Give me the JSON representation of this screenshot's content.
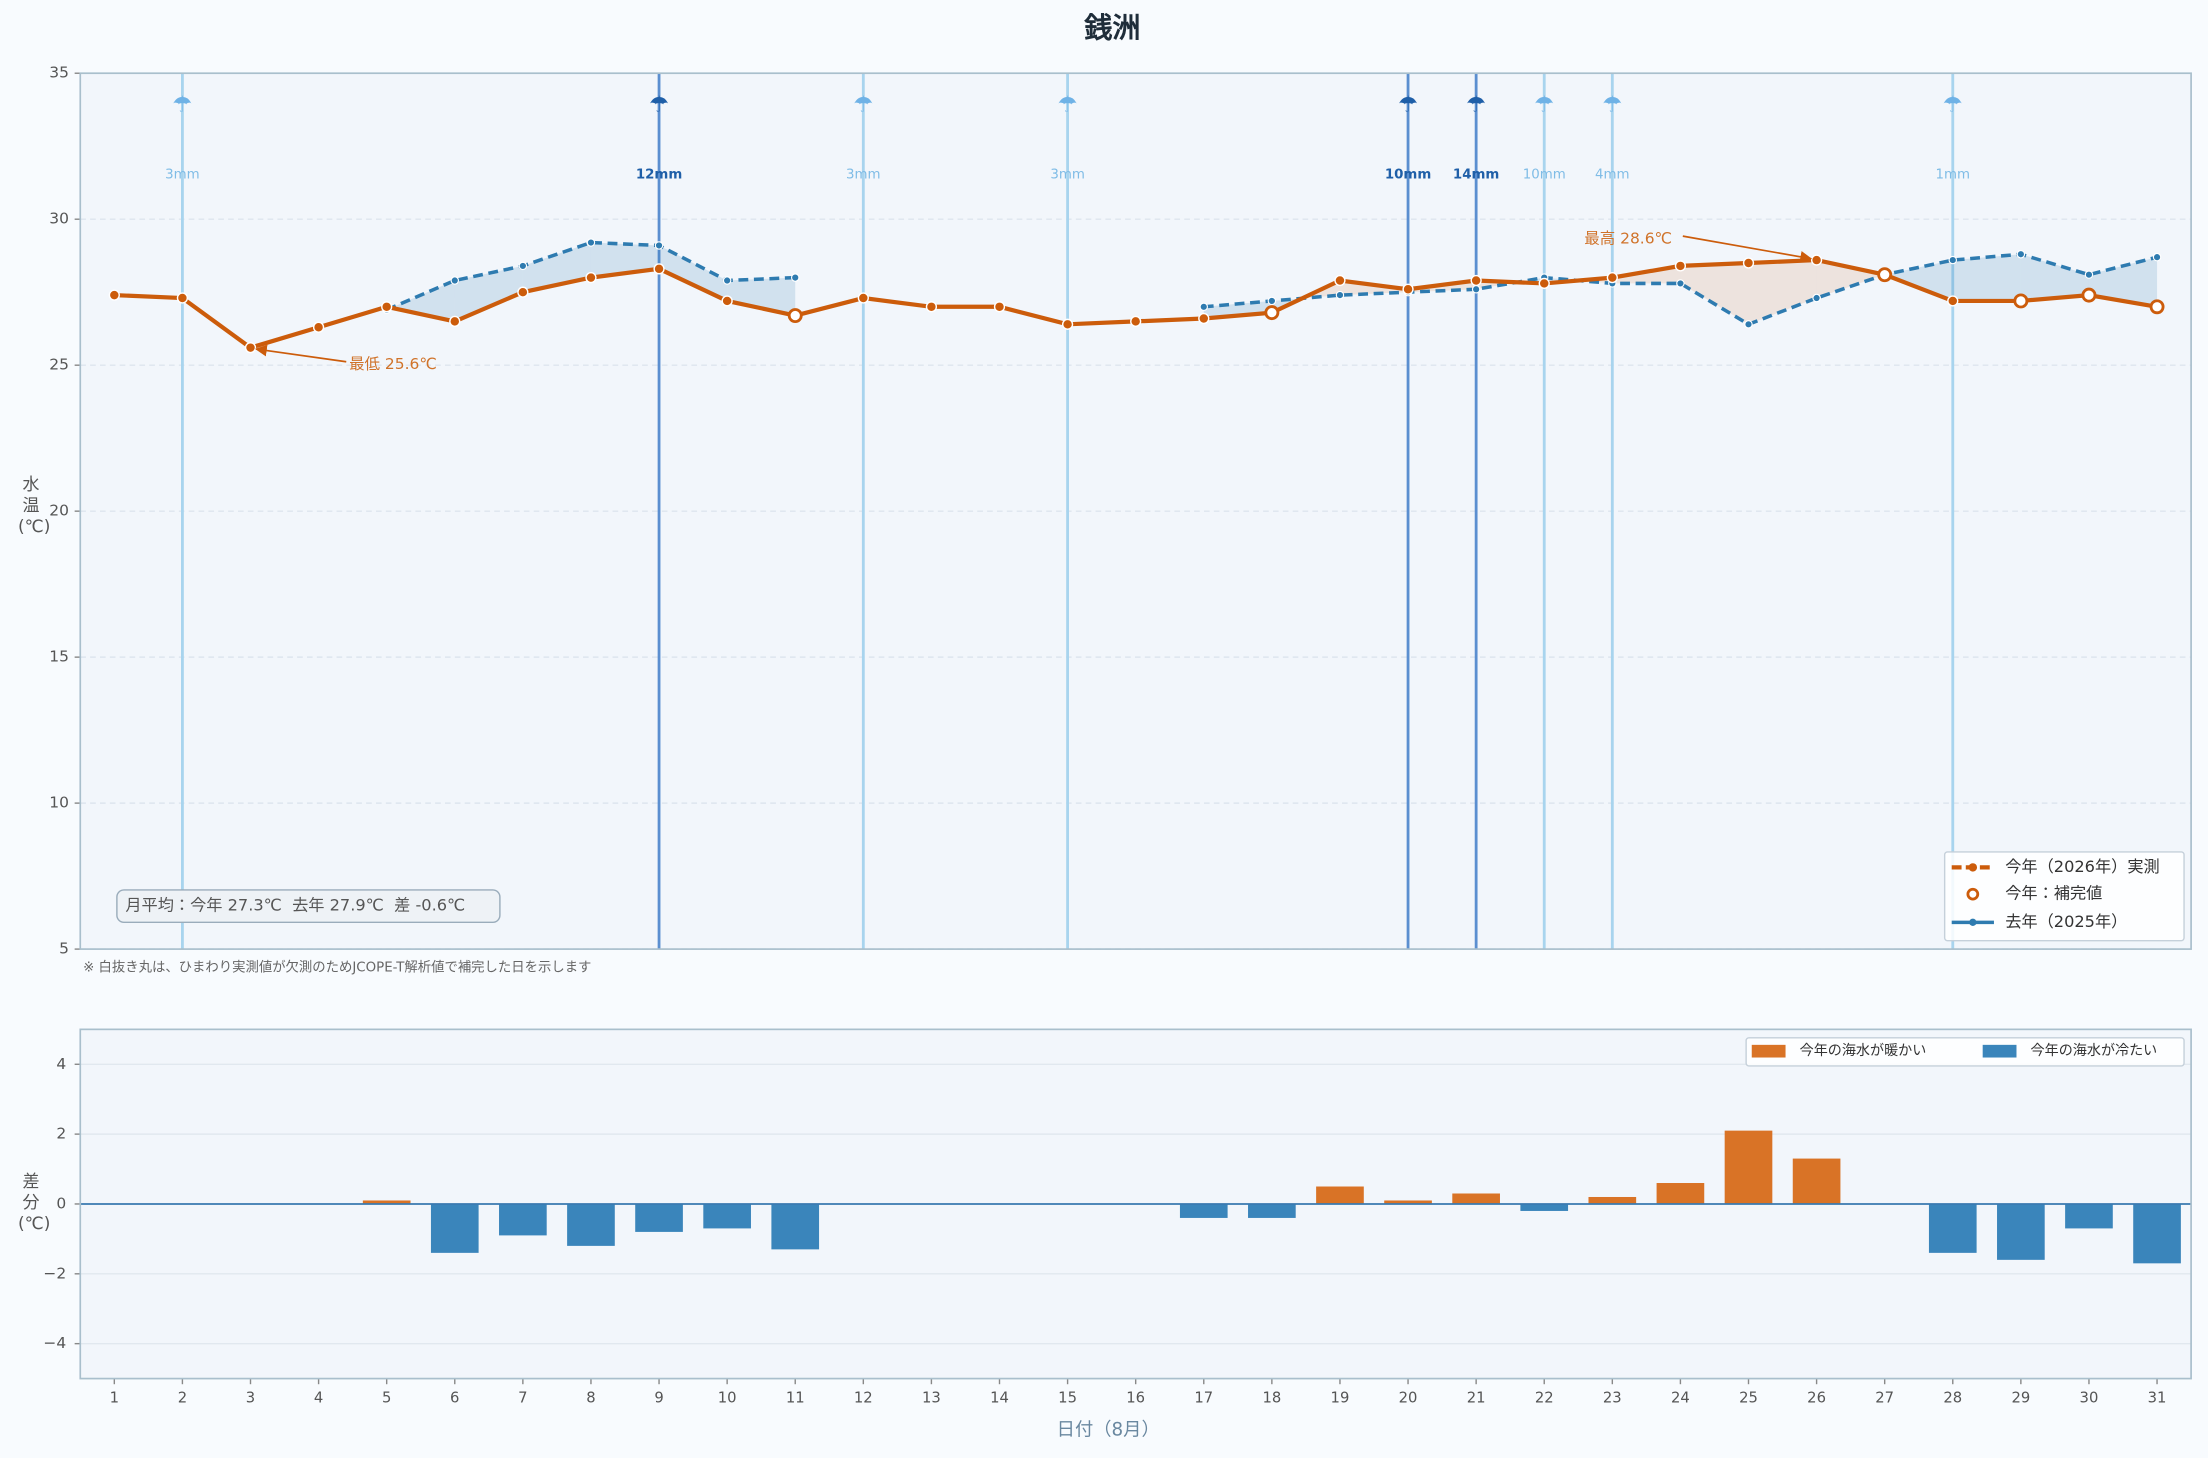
{
  "chart_data": [
    {
      "type": "line",
      "title": "銭洲",
      "ylabel": "水温(℃)",
      "x": [
        1,
        2,
        3,
        4,
        5,
        6,
        7,
        8,
        9,
        10,
        11,
        12,
        13,
        14,
        15,
        16,
        17,
        18,
        19,
        20,
        21,
        22,
        23,
        24,
        25,
        26,
        27,
        28,
        29,
        30,
        31
      ],
      "xlim": [
        0.5,
        31.5
      ],
      "ylim": [
        5,
        35
      ],
      "yticks": [
        5,
        10,
        15,
        20,
        25,
        30,
        35
      ],
      "grid": true,
      "series": [
        {
          "name": "今年（2026年）実測",
          "color": "#cc5c0b",
          "values": [
            27.4,
            27.3,
            25.6,
            26.3,
            27.0,
            26.5,
            27.5,
            28.0,
            28.3,
            27.2,
            26.7,
            27.3,
            27.0,
            27.0,
            26.4,
            26.5,
            26.6,
            26.8,
            27.9,
            27.6,
            27.9,
            27.8,
            28.0,
            28.4,
            28.5,
            28.6,
            28.1,
            27.2,
            27.2,
            27.4,
            27.0
          ]
        },
        {
          "name": "去年（2025年）",
          "color": "#2e7bb0",
          "values": [
            null,
            null,
            null,
            null,
            26.9,
            27.9,
            28.4,
            29.2,
            29.1,
            27.9,
            28.0,
            null,
            null,
            null,
            null,
            null,
            27.0,
            27.2,
            27.4,
            27.5,
            27.6,
            28.0,
            27.8,
            27.8,
            26.4,
            27.3,
            28.1,
            28.6,
            28.8,
            28.1,
            28.7
          ]
        }
      ],
      "imputed": {
        "name": "今年：補完値",
        "days": [
          11,
          18,
          27,
          29,
          30,
          31
        ]
      },
      "rain": [
        {
          "day": 2,
          "value": 3,
          "label": "3mm",
          "heavy": false
        },
        {
          "day": 9,
          "value": 12,
          "label": "12mm",
          "heavy": true
        },
        {
          "day": 12,
          "value": 3,
          "label": "3mm",
          "heavy": false
        },
        {
          "day": 15,
          "value": 3,
          "label": "3mm",
          "heavy": false
        },
        {
          "day": 20,
          "value": 10,
          "label": "10mm",
          "heavy": true
        },
        {
          "day": 21,
          "value": 14,
          "label": "14mm",
          "heavy": true
        },
        {
          "day": 22,
          "value": 10,
          "label": "10mm",
          "heavy": false
        },
        {
          "day": 23,
          "value": 4,
          "label": "4mm",
          "heavy": false
        },
        {
          "day": 28,
          "value": 1,
          "label": "1mm",
          "heavy": false
        }
      ],
      "annotations": [
        {
          "text": "最低 25.6℃",
          "index": 2
        },
        {
          "text": "最高 28.6℃",
          "index": 25
        }
      ],
      "summary": "月平均：今年 27.3℃  去年 27.9℃  差 -0.6℃",
      "note": "※ 白抜き丸は、ひまわり実測値が欠測のためJCOPE-T解析値で補完した日を示します",
      "legend": "lower right"
    },
    {
      "type": "bar",
      "ylabel": "差分(℃)",
      "xlabel": "日付（8月）",
      "x": [
        1,
        2,
        3,
        4,
        5,
        6,
        7,
        8,
        9,
        10,
        11,
        12,
        13,
        14,
        15,
        16,
        17,
        18,
        19,
        20,
        21,
        22,
        23,
        24,
        25,
        26,
        27,
        28,
        29,
        30,
        31
      ],
      "xticks": [
        1,
        2,
        3,
        4,
        5,
        6,
        7,
        8,
        9,
        10,
        11,
        12,
        13,
        14,
        15,
        16,
        17,
        18,
        19,
        20,
        21,
        22,
        23,
        24,
        25,
        26,
        27,
        28,
        29,
        30,
        31
      ],
      "xlim": [
        0.5,
        31.5
      ],
      "ylim": [
        -5,
        5
      ],
      "yticks": [
        {
          "value": -4,
          "label": "−4"
        },
        {
          "value": -2,
          "label": "−2"
        },
        0,
        2,
        4
      ],
      "grid": true,
      "values": [
        null,
        null,
        null,
        null,
        0.1,
        -1.4,
        -0.9,
        -1.2,
        -0.8,
        -0.7,
        -1.3,
        null,
        null,
        null,
        null,
        null,
        -0.4,
        -0.4,
        0.5,
        0.1,
        0.3,
        -0.2,
        0.2,
        0.6,
        2.1,
        1.3,
        0,
        -1.4,
        -1.6,
        -0.7,
        -1.7
      ],
      "series": [
        {
          "name": "今年の海水が暖かい",
          "color": "#d97326"
        },
        {
          "name": "今年の海水が冷たい",
          "color": "#3a85bb"
        }
      ],
      "legend": "upper right"
    }
  ]
}
